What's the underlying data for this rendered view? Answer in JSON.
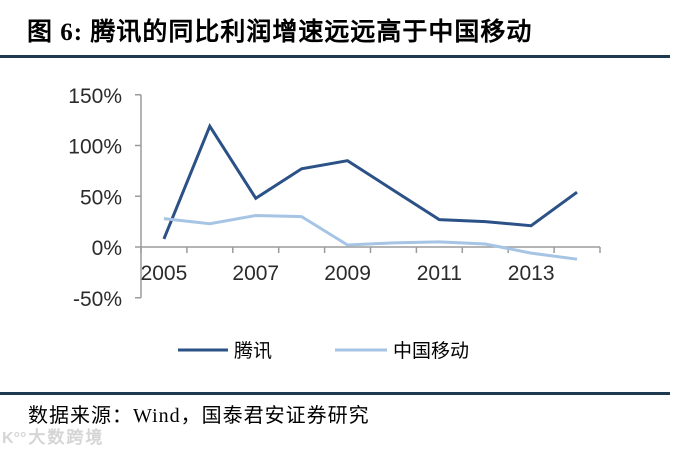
{
  "header": {
    "title": "图 6: 腾讯的同比利润增速远远高于中国移动"
  },
  "footer": {
    "source": "数据来源：Wind，国泰君安证券研究"
  },
  "watermark": {
    "logo": "K°°",
    "text": "大数跨境"
  },
  "colors": {
    "rule": "#1e3a52",
    "axis_line": "#9b9b9b",
    "tick_label": "#2b2b2b",
    "tencent_line": "#2b5186",
    "china_mobile_line": "#a6c4e4"
  },
  "chart_data": {
    "type": "line",
    "title": "图 6: 腾讯的同比利润增速远远高于中国移动",
    "categories": [
      "2005",
      "2006",
      "2007",
      "2008",
      "2009",
      "2010",
      "2011",
      "2012",
      "2013",
      "2014"
    ],
    "x_tick_labels": [
      "2005",
      "2007",
      "2009",
      "2011",
      "2013"
    ],
    "y_tick_labels": [
      "150%",
      "100%",
      "50%",
      "0%",
      "-50%"
    ],
    "y_tick_values": [
      150,
      100,
      50,
      0,
      -50
    ],
    "ylim": [
      -50,
      150
    ],
    "ylabel": "",
    "xlabel": "",
    "grid": "off",
    "legend_position": "bottom",
    "unit": "percent",
    "series": [
      {
        "name": "腾讯",
        "color": "#2b5186",
        "values": [
          8,
          119,
          48,
          77,
          85,
          56,
          27,
          25,
          21,
          54
        ]
      },
      {
        "name": "中国移动",
        "color": "#a6c4e4",
        "values": [
          28,
          23,
          31,
          30,
          2,
          4,
          5,
          3,
          -6,
          -12
        ]
      }
    ]
  }
}
